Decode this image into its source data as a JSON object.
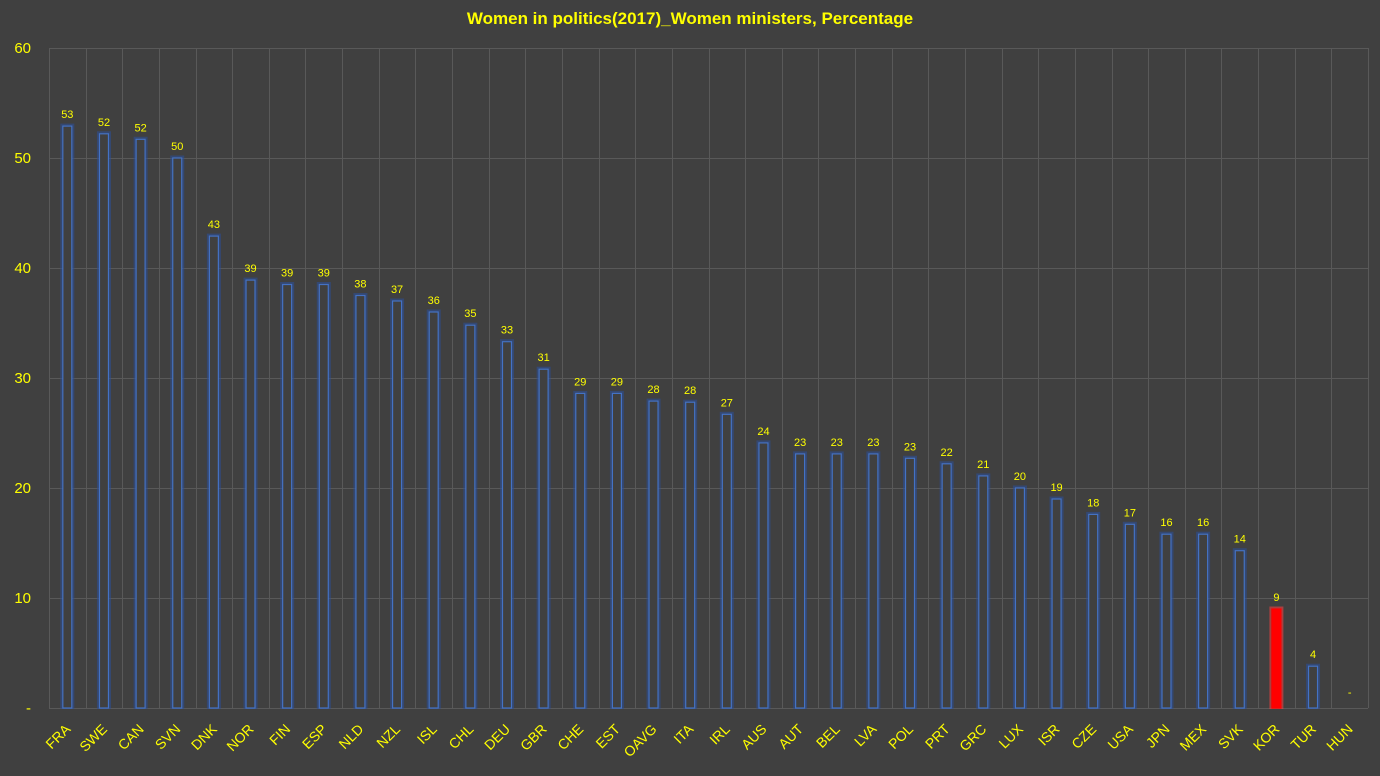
{
  "chart_data": {
    "type": "bar",
    "title": "Women in politics(2017)_Women ministers, Percentage",
    "xlabel": "",
    "ylabel": "",
    "ylim": [
      0,
      60
    ],
    "yticks": [
      {
        "value": 0,
        "label": "-"
      },
      {
        "value": 10,
        "label": "10"
      },
      {
        "value": 20,
        "label": "20"
      },
      {
        "value": 30,
        "label": "30"
      },
      {
        "value": 40,
        "label": "40"
      },
      {
        "value": 50,
        "label": "50"
      },
      {
        "value": 60,
        "label": "60"
      }
    ],
    "grid": true,
    "legend": "none",
    "categories": [
      "FRA",
      "SWE",
      "CAN",
      "SVN",
      "DNK",
      "NOR",
      "FIN",
      "ESP",
      "NLD",
      "NZL",
      "ISL",
      "CHL",
      "DEU",
      "GBR",
      "CHE",
      "EST",
      "OAVG",
      "ITA",
      "IRL",
      "AUS",
      "AUT",
      "BEL",
      "LVA",
      "POL",
      "PRT",
      "GRC",
      "LUX",
      "ISR",
      "CZE",
      "USA",
      "JPN",
      "MEX",
      "SVK",
      "KOR",
      "TUR",
      "HUN"
    ],
    "values": [
      52.9,
      52.2,
      51.7,
      50.0,
      42.9,
      38.9,
      38.5,
      38.5,
      37.5,
      37.0,
      36.0,
      34.8,
      33.3,
      30.8,
      28.6,
      28.6,
      27.9,
      27.8,
      26.7,
      24.1,
      23.1,
      23.1,
      23.1,
      22.7,
      22.2,
      21.1,
      20.0,
      19.0,
      17.6,
      16.7,
      15.8,
      15.8,
      14.3,
      9.0,
      3.8,
      0
    ],
    "data_labels": [
      "53",
      "52",
      "52",
      "50",
      "43",
      "39",
      "39",
      "39",
      "38",
      "37",
      "36",
      "35",
      "33",
      "31",
      "29",
      "29",
      "28",
      "28",
      "27",
      "24",
      "23",
      "23",
      "23",
      "23",
      "22",
      "21",
      "20",
      "19",
      "18",
      "17",
      "16",
      "16",
      "14",
      "9",
      "4",
      "-"
    ],
    "highlight": "KOR",
    "colors": {
      "background": "#404040",
      "bar_fill": "#404040",
      "bar_edge": "#4472c4",
      "highlight_fill": "#ff0000",
      "text": "#ffff00",
      "grid": "#595959"
    }
  }
}
